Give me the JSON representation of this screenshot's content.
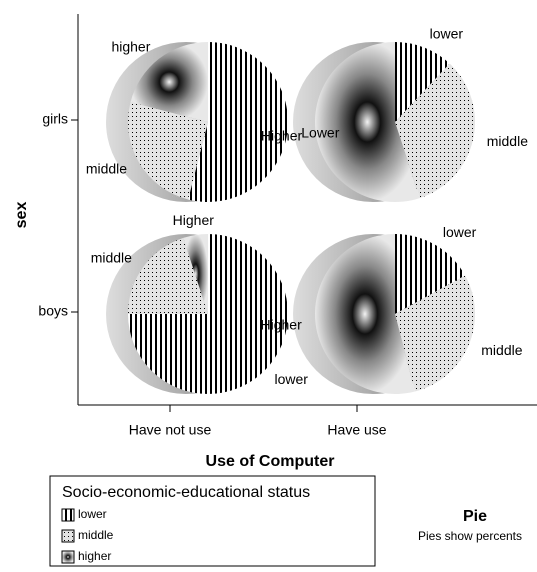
{
  "chart_data": {
    "type": "pie_grid",
    "x_label": "Use of Computer",
    "y_label": "sex",
    "columns": [
      "Have not use",
      "Have use"
    ],
    "rows": [
      "girls",
      "boys"
    ],
    "legend_title": "Socio-economic-educational status",
    "slices": [
      "lower",
      "middle",
      "higher"
    ],
    "patterns": [
      "stripes",
      "dots",
      "gradient"
    ],
    "pies": [
      [
        {
          "labels": [
            "Lower",
            "middle",
            "higher"
          ],
          "values": [
            54,
            25,
            21
          ]
        },
        {
          "labels": [
            "lower",
            "middle",
            "Higher"
          ],
          "values": [
            12,
            33,
            55
          ]
        }
      ],
      [
        {
          "labels": [
            "lower",
            "middle",
            "Higher"
          ],
          "values": [
            75,
            20,
            5
          ]
        },
        {
          "labels": [
            "lower",
            "middle",
            "Higher"
          ],
          "values": [
            17,
            29,
            54
          ]
        }
      ]
    ],
    "note_title": "Pie",
    "note": "Pies show percents"
  }
}
